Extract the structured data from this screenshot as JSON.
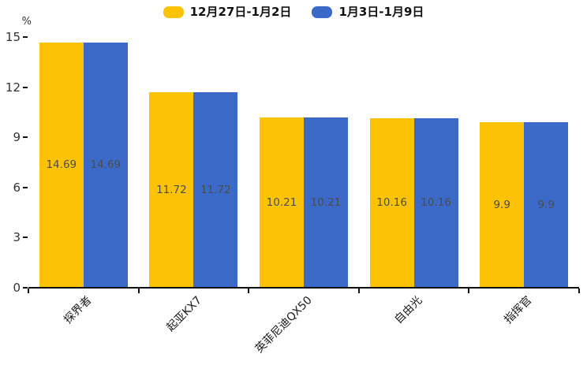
{
  "legend": {
    "items": [
      {
        "label": "12月27日-1月2日",
        "color": "#FCC306"
      },
      {
        "label": "1月3日-1月9日",
        "color": "#3A69C8"
      }
    ]
  },
  "chart_data": {
    "type": "bar",
    "title": "",
    "categories": [
      "探界者",
      "起亚KX7",
      "英菲尼迪QX50",
      "自由光",
      "指挥官"
    ],
    "series": [
      {
        "name": "12月27日-1月2日",
        "color": "#FCC306",
        "values": [
          14.69,
          11.72,
          10.21,
          10.16,
          9.9
        ]
      },
      {
        "name": "1月3日-1月9日",
        "color": "#3A69C8",
        "values": [
          14.69,
          11.72,
          10.21,
          10.16,
          9.9
        ]
      }
    ],
    "value_labels": [
      [
        "14.69",
        "11.72",
        "10.21",
        "10.16",
        "9.9"
      ],
      [
        "14.69",
        "11.72",
        "10.21",
        "10.16",
        "9.9"
      ]
    ],
    "ylabel": "%",
    "yticks": [
      0,
      3,
      6,
      9,
      12,
      15
    ],
    "ylim": [
      0,
      15
    ],
    "grid": false,
    "legend_position": "top",
    "value_label_color": "#4d4d4d",
    "axis_color": "#111111"
  }
}
